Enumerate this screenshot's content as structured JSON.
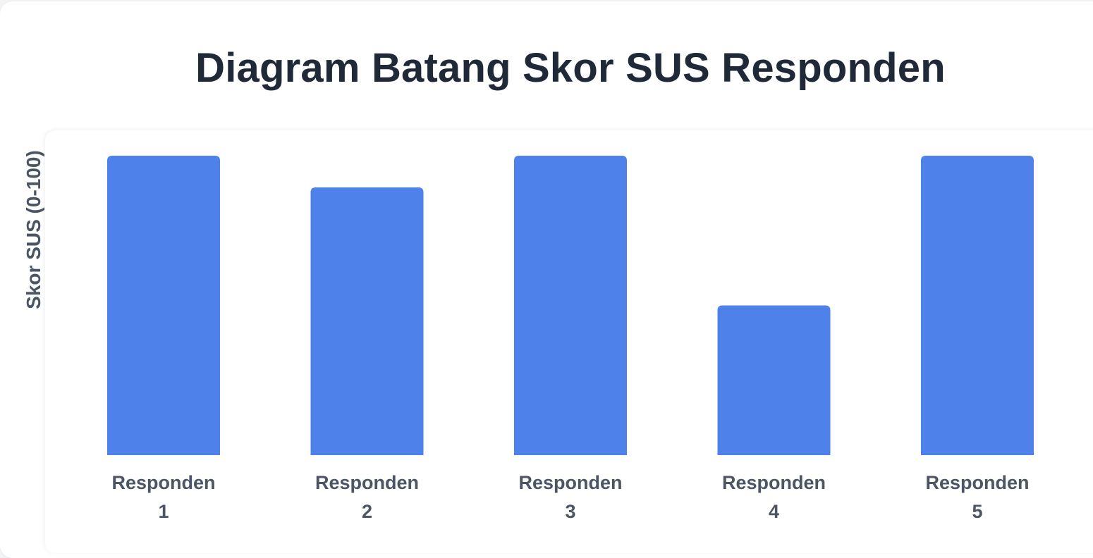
{
  "chart_data": {
    "type": "bar",
    "title": "Diagram Batang Skor SUS Responden",
    "xlabel": "",
    "ylabel": "Skor SUS (0-100)",
    "ylim": [
      0,
      100
    ],
    "categories": [
      "Responden 1",
      "Responden 2",
      "Responden 3",
      "Responden 4",
      "Responden 5"
    ],
    "category_lines": [
      [
        "Responden",
        "1"
      ],
      [
        "Responden",
        "2"
      ],
      [
        "Responden",
        "3"
      ],
      [
        "Responden",
        "4"
      ],
      [
        "Responden",
        "5"
      ]
    ],
    "values": [
      85,
      76,
      85,
      42.5,
      85
    ],
    "grid": false,
    "bar_color": "#4f81eb"
  }
}
